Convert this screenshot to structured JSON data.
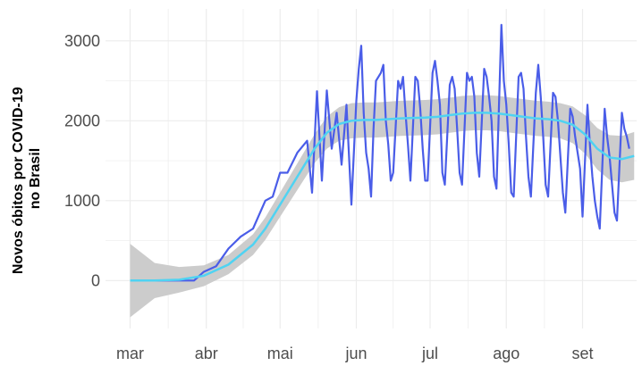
{
  "chart_data": {
    "type": "line",
    "title": "",
    "xlabel": "",
    "ylabel_lines": [
      "Novos óbitos por COVID-19",
      "no Brasil"
    ],
    "x_axis": {
      "domain_days": [
        -10,
        206
      ],
      "tick_labels": [
        "mar",
        "abr",
        "mai",
        "jun",
        "jul",
        "ago",
        "set"
      ],
      "tick_days": [
        0,
        31,
        61,
        92,
        122,
        153,
        184
      ]
    },
    "y_axis": {
      "ylim": [
        -600,
        3400
      ],
      "ticks": [
        0,
        1000,
        2000,
        3000
      ]
    },
    "grid": true,
    "colors": {
      "series": "#4a5de8",
      "smooth": "#4fd3f2",
      "band": "#cccccc",
      "grid": "#ececec"
    },
    "series": [
      {
        "x": [
          0,
          26,
          30,
          35,
          40,
          45,
          50,
          55,
          58,
          61,
          64,
          68,
          72,
          74,
          76,
          78,
          80,
          82,
          84,
          86,
          88,
          90,
          92,
          93,
          94,
          95,
          96,
          97,
          98,
          99,
          100,
          102,
          103,
          104,
          105,
          106,
          107,
          109,
          110,
          111,
          112,
          113,
          114,
          116,
          117,
          118,
          119,
          120,
          121,
          123,
          124,
          125,
          126,
          127,
          128,
          130,
          131,
          132,
          133,
          134,
          135,
          137,
          138,
          139,
          140,
          141,
          142,
          144,
          145,
          146,
          147,
          148,
          149,
          151,
          152,
          153,
          154,
          155,
          156,
          158,
          159,
          160,
          161,
          162,
          163,
          165,
          166,
          167,
          168,
          169,
          170,
          172,
          173,
          174,
          175,
          176,
          177,
          179,
          180,
          181,
          182,
          183,
          184,
          186,
          187,
          188,
          189,
          190,
          191,
          193,
          194,
          195,
          196,
          197,
          198,
          200,
          201,
          202,
          203
        ],
        "values": [
          0,
          0,
          110,
          180,
          400,
          550,
          650,
          1000,
          1050,
          1350,
          1350,
          1600,
          1750,
          1100,
          2370,
          1250,
          2380,
          1650,
          2100,
          1450,
          2200,
          950,
          2250,
          2650,
          2940,
          2100,
          1600,
          1400,
          1050,
          1900,
          2500,
          2600,
          2700,
          2000,
          1700,
          1250,
          1350,
          2500,
          2400,
          2550,
          2100,
          1700,
          1250,
          2550,
          2500,
          2150,
          1650,
          1250,
          1250,
          2600,
          2750,
          2500,
          2200,
          1350,
          1200,
          2450,
          2550,
          2400,
          1900,
          1350,
          1200,
          2600,
          2500,
          2550,
          2300,
          1600,
          1300,
          2650,
          2550,
          2300,
          2000,
          1300,
          1150,
          3200,
          2500,
          2200,
          1700,
          1100,
          1050,
          2550,
          2600,
          2400,
          1800,
          1300,
          1050,
          2350,
          2700,
          2300,
          1800,
          1200,
          1050,
          2350,
          2300,
          2000,
          1550,
          1100,
          850,
          2150,
          2050,
          1800,
          1600,
          1400,
          800,
          2200,
          1700,
          1300,
          1000,
          800,
          650,
          2150,
          1800,
          1550,
          1200,
          850,
          750,
          2100,
          1900,
          1800,
          1650
        ]
      }
    ],
    "smooth_fit": {
      "x": [
        0,
        10,
        20,
        30,
        40,
        50,
        55,
        60,
        65,
        70,
        75,
        80,
        85,
        90,
        95,
        100,
        105,
        110,
        115,
        120,
        125,
        130,
        135,
        140,
        145,
        150,
        155,
        160,
        165,
        170,
        175,
        180,
        185,
        190,
        195,
        200,
        205
      ],
      "values": [
        0,
        0,
        10,
        60,
        200,
        450,
        650,
        900,
        1150,
        1400,
        1650,
        1850,
        1960,
        2000,
        2010,
        2010,
        2020,
        2030,
        2035,
        2040,
        2050,
        2070,
        2090,
        2100,
        2100,
        2090,
        2070,
        2050,
        2030,
        2020,
        2000,
        1950,
        1830,
        1650,
        1540,
        1520,
        1560
      ],
      "ci_half_width": [
        460,
        220,
        160,
        130,
        120,
        130,
        140,
        150,
        160,
        170,
        180,
        200,
        210,
        220,
        220,
        220,
        220,
        220,
        220,
        220,
        220,
        220,
        220,
        220,
        220,
        220,
        220,
        220,
        220,
        220,
        220,
        230,
        240,
        260,
        280,
        290,
        300
      ]
    }
  }
}
